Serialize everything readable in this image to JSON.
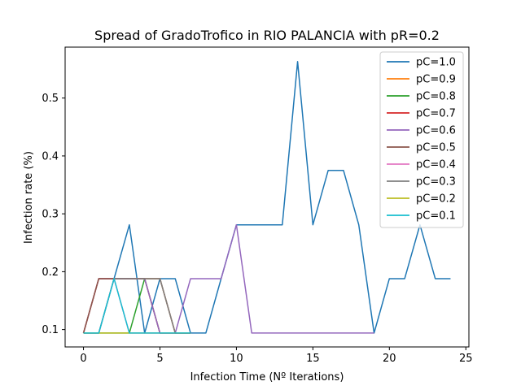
{
  "chart_data": {
    "type": "line",
    "title": "Spread of GradoTrofico in RIO PALANCIA with pR=0.2",
    "xlabel": "Infection Time (Nº Iterations)",
    "ylabel": "Infection rate (%)",
    "xlim": [
      -1.2,
      25.2
    ],
    "ylim": [
      0.07,
      0.588
    ],
    "xticks": [
      "0",
      "5",
      "10",
      "15",
      "20",
      "25"
    ],
    "xtick_values": [
      0,
      5,
      10,
      15,
      20,
      25
    ],
    "yticks": [
      "0.1",
      "0.2",
      "0.3",
      "0.4",
      "0.5"
    ],
    "ytick_values": [
      0.1,
      0.2,
      0.3,
      0.4,
      0.5
    ],
    "grid": false,
    "legend_position": "top-right",
    "series": [
      {
        "name": "pC=1.0",
        "color": "#1f77b4",
        "x": [
          0,
          1,
          2,
          3,
          4,
          5,
          6,
          7,
          8,
          9,
          10,
          11,
          12,
          13,
          14,
          15,
          16,
          17,
          18,
          19,
          20,
          21,
          22,
          23,
          24
        ],
        "y": [
          0.094,
          0.094,
          0.188,
          0.281,
          0.094,
          0.188,
          0.188,
          0.094,
          0.094,
          0.188,
          0.281,
          0.281,
          0.281,
          0.281,
          0.563,
          0.281,
          0.375,
          0.375,
          0.281,
          0.094,
          0.188,
          0.188,
          0.281,
          0.188,
          0.188
        ]
      },
      {
        "name": "pC=0.9",
        "color": "#ff7f0e",
        "x": [
          0,
          1,
          2,
          3,
          4,
          5,
          6,
          7
        ],
        "y": [
          0.094,
          0.188,
          0.188,
          0.188,
          0.188,
          0.188,
          0.094,
          0.094
        ]
      },
      {
        "name": "pC=0.8",
        "color": "#2ca02c",
        "x": [
          0,
          1,
          2,
          3,
          4,
          5,
          6,
          7
        ],
        "y": [
          0.094,
          0.094,
          0.094,
          0.094,
          0.188,
          0.094,
          0.094,
          0.094
        ]
      },
      {
        "name": "pC=0.7",
        "color": "#d62728",
        "x": [
          0,
          1,
          2,
          3,
          4,
          5,
          6,
          7
        ],
        "y": [
          0.094,
          0.188,
          0.188,
          0.188,
          0.188,
          0.094,
          0.094,
          0.094
        ]
      },
      {
        "name": "pC=0.6",
        "color": "#9467bd",
        "x": [
          0,
          1,
          2,
          3,
          4,
          5,
          6,
          7,
          8,
          9,
          10,
          11,
          12,
          13,
          14,
          15,
          16,
          17,
          18,
          19
        ],
        "y": [
          0.094,
          0.188,
          0.188,
          0.188,
          0.188,
          0.094,
          0.094,
          0.188,
          0.188,
          0.188,
          0.281,
          0.094,
          0.094,
          0.094,
          0.094,
          0.094,
          0.094,
          0.094,
          0.094,
          0.094
        ]
      },
      {
        "name": "pC=0.5",
        "color": "#8c564b",
        "x": [
          0,
          1,
          2,
          3,
          4,
          5,
          6,
          7
        ],
        "y": [
          0.094,
          0.188,
          0.188,
          0.188,
          0.188,
          0.188,
          0.094,
          0.094
        ]
      },
      {
        "name": "pC=0.4",
        "color": "#e377c2",
        "x": [
          0,
          1,
          2,
          3,
          4,
          5,
          6,
          7
        ],
        "y": [
          0.094,
          0.094,
          0.188,
          0.094,
          0.094,
          0.094,
          0.094,
          0.094
        ]
      },
      {
        "name": "pC=0.3",
        "color": "#7f7f7f",
        "x": [
          0,
          1,
          2,
          3,
          4,
          5,
          6,
          7
        ],
        "y": [
          0.094,
          0.094,
          0.188,
          0.188,
          0.188,
          0.188,
          0.094,
          0.094
        ]
      },
      {
        "name": "pC=0.2",
        "color": "#bcbd22",
        "x": [
          0,
          1,
          2,
          3,
          4,
          5,
          6,
          7
        ],
        "y": [
          0.094,
          0.094,
          0.094,
          0.094,
          0.094,
          0.094,
          0.094,
          0.094
        ]
      },
      {
        "name": "pC=0.1",
        "color": "#17becf",
        "x": [
          0,
          1,
          2,
          3,
          4,
          5,
          6,
          7
        ],
        "y": [
          0.094,
          0.094,
          0.188,
          0.094,
          0.094,
          0.094,
          0.094,
          0.094
        ]
      }
    ]
  }
}
